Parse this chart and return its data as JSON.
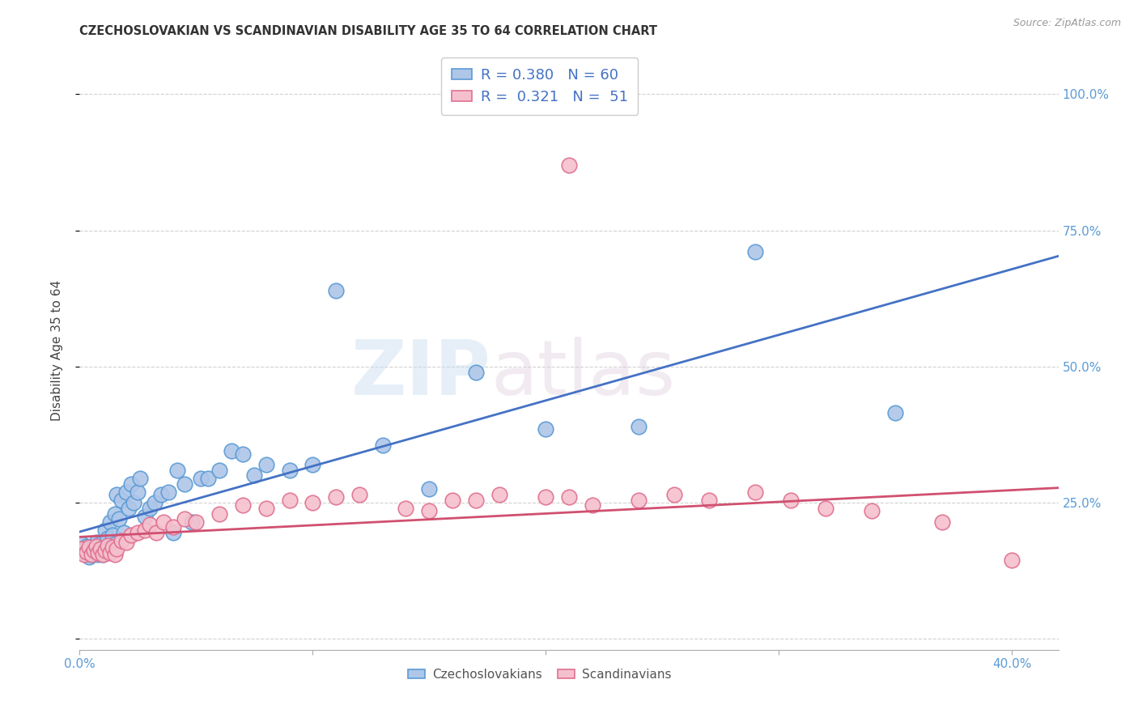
{
  "title": "CZECHOSLOVAKIAN VS SCANDINAVIAN DISABILITY AGE 35 TO 64 CORRELATION CHART",
  "source": "Source: ZipAtlas.com",
  "ylabel": "Disability Age 35 to 64",
  "xlim": [
    0.0,
    0.42
  ],
  "ylim": [
    -0.02,
    1.08
  ],
  "ytick_positions": [
    0.0,
    0.25,
    0.5,
    0.75,
    1.0
  ],
  "ytick_labels_right": [
    "",
    "25.0%",
    "50.0%",
    "75.0%",
    "100.0%"
  ],
  "xtick_positions": [
    0.0,
    0.1,
    0.2,
    0.3,
    0.4
  ],
  "xtick_labels": [
    "0.0%",
    "",
    "",
    "",
    "40.0%"
  ],
  "czech_color": "#aec6e8",
  "czech_edge_color": "#5b9bd5",
  "scand_color": "#f5c0ce",
  "scand_edge_color": "#e07090",
  "trend_czech_color": "#4472c4",
  "trend_scand_color": "#d05070",
  "legend_R_czech": "0.380",
  "legend_N_czech": "60",
  "legend_R_scand": "0.321",
  "legend_N_scand": "51",
  "watermark_zip": "ZIP",
  "watermark_atlas": "atlas",
  "czech_x": [
    0.001,
    0.002,
    0.003,
    0.003,
    0.004,
    0.004,
    0.005,
    0.005,
    0.006,
    0.006,
    0.007,
    0.007,
    0.008,
    0.008,
    0.009,
    0.009,
    0.01,
    0.01,
    0.011,
    0.012,
    0.013,
    0.014,
    0.015,
    0.015,
    0.016,
    0.017,
    0.018,
    0.019,
    0.02,
    0.021,
    0.022,
    0.023,
    0.025,
    0.026,
    0.028,
    0.03,
    0.032,
    0.035,
    0.038,
    0.04,
    0.042,
    0.045,
    0.048,
    0.052,
    0.055,
    0.06,
    0.065,
    0.07,
    0.075,
    0.08,
    0.09,
    0.1,
    0.11,
    0.13,
    0.15,
    0.17,
    0.2,
    0.24,
    0.29,
    0.35
  ],
  "czech_y": [
    0.175,
    0.165,
    0.155,
    0.17,
    0.16,
    0.15,
    0.168,
    0.155,
    0.172,
    0.158,
    0.162,
    0.178,
    0.155,
    0.168,
    0.16,
    0.175,
    0.165,
    0.155,
    0.2,
    0.185,
    0.215,
    0.19,
    0.23,
    0.175,
    0.265,
    0.22,
    0.255,
    0.195,
    0.27,
    0.24,
    0.285,
    0.25,
    0.27,
    0.295,
    0.225,
    0.24,
    0.25,
    0.265,
    0.27,
    0.195,
    0.31,
    0.285,
    0.215,
    0.295,
    0.295,
    0.31,
    0.345,
    0.34,
    0.3,
    0.32,
    0.31,
    0.32,
    0.64,
    0.355,
    0.275,
    0.49,
    0.385,
    0.39,
    0.71,
    0.415
  ],
  "scand_x": [
    0.001,
    0.002,
    0.003,
    0.004,
    0.005,
    0.006,
    0.007,
    0.008,
    0.009,
    0.01,
    0.011,
    0.012,
    0.013,
    0.014,
    0.015,
    0.016,
    0.018,
    0.02,
    0.022,
    0.025,
    0.028,
    0.03,
    0.033,
    0.036,
    0.04,
    0.045,
    0.05,
    0.06,
    0.07,
    0.08,
    0.09,
    0.1,
    0.11,
    0.12,
    0.14,
    0.15,
    0.16,
    0.17,
    0.18,
    0.2,
    0.21,
    0.22,
    0.24,
    0.255,
    0.27,
    0.29,
    0.305,
    0.32,
    0.34,
    0.37,
    0.4
  ],
  "scand_y": [
    0.165,
    0.155,
    0.16,
    0.168,
    0.155,
    0.162,
    0.17,
    0.158,
    0.165,
    0.155,
    0.162,
    0.172,
    0.158,
    0.168,
    0.155,
    0.165,
    0.18,
    0.178,
    0.19,
    0.195,
    0.2,
    0.21,
    0.195,
    0.215,
    0.205,
    0.22,
    0.215,
    0.23,
    0.245,
    0.24,
    0.255,
    0.25,
    0.26,
    0.265,
    0.24,
    0.235,
    0.255,
    0.255,
    0.265,
    0.26,
    0.26,
    0.245,
    0.255,
    0.265,
    0.255,
    0.27,
    0.255,
    0.24,
    0.235,
    0.215,
    0.145
  ],
  "scand_outlier_x": [
    0.21
  ],
  "scand_outlier_y": [
    0.87
  ]
}
